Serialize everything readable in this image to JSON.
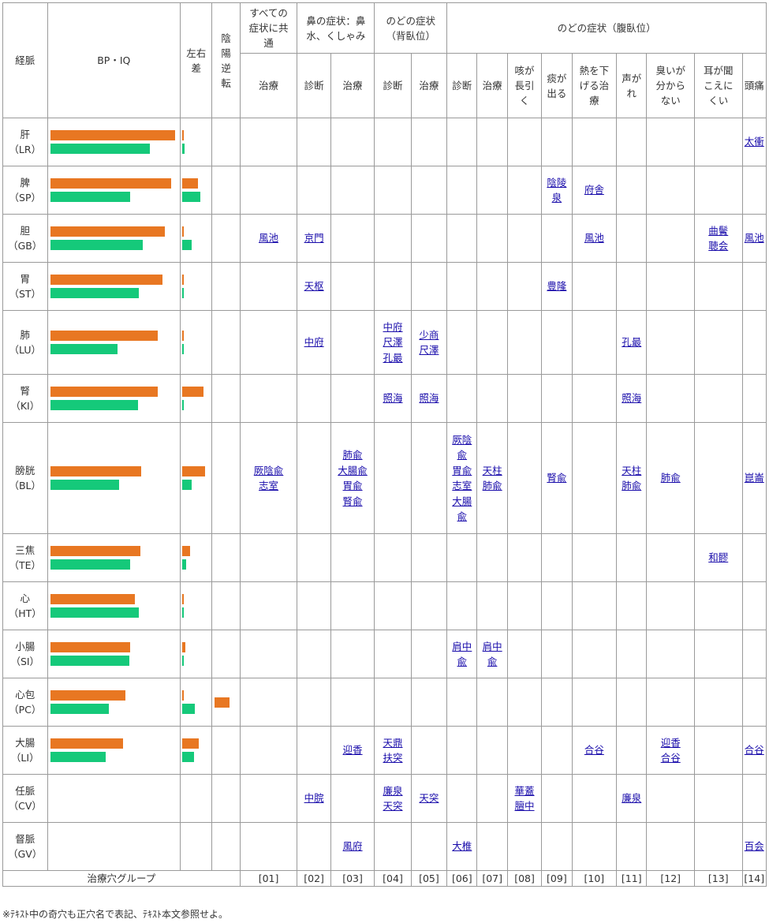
{
  "colors": {
    "bp": "#e87722",
    "iq": "#15c97a",
    "link": "#1a0dab",
    "border": "#9a9a9a"
  },
  "header": {
    "keimyaku": "経脈",
    "bpiq": "BP・IQ",
    "sayu": [
      "左右",
      "差"
    ],
    "inyo": [
      "陰",
      "陽",
      "逆",
      "転"
    ],
    "group_all": [
      "すべての",
      "症状に共",
      "通"
    ],
    "group_nose": [
      "鼻の症状：鼻",
      "水、くしゃみ"
    ],
    "group_throat_back": [
      "のどの症状",
      "（背臥位）"
    ],
    "group_throat_prone": "のどの症状（腹臥位）",
    "sub": {
      "c1": "治療",
      "c2": "診断",
      "c3": "治療",
      "c4": "診断",
      "c5": "治療",
      "c6": "診断",
      "c7": "治療",
      "c8": [
        "咳が",
        "長引",
        "く"
      ],
      "c9": [
        "痰が",
        "出る"
      ],
      "c10": [
        "熱を下",
        "げる治",
        "療"
      ],
      "c11": [
        "声が",
        "れ"
      ],
      "c12": [
        "臭いが",
        "分から",
        "ない"
      ],
      "c13": [
        "耳が聞",
        "こえに",
        "くい"
      ],
      "c14": "頭痛"
    }
  },
  "rows": [
    {
      "name": "肝",
      "code": "（LR）",
      "bp": 1.0,
      "iq": 0.8,
      "d1": 0.07,
      "d2": 0.1,
      "inv": 0,
      "cells": [
        [],
        [],
        [],
        [],
        [],
        [],
        [],
        [],
        [],
        [],
        [],
        [],
        [],
        [
          "太衝"
        ]
      ]
    },
    {
      "name": "脾",
      "code": "（SP）",
      "bp": 0.97,
      "iq": 0.64,
      "d1": 0.6,
      "d2": 0.68,
      "inv": 0,
      "cells": [
        [],
        [],
        [],
        [],
        [],
        [],
        [],
        [],
        [
          "陰陵",
          "泉"
        ],
        [
          "府舎"
        ],
        [],
        [],
        [],
        []
      ]
    },
    {
      "name": "胆",
      "code": "（GB）",
      "bp": 0.92,
      "iq": 0.74,
      "d1": 0.07,
      "d2": 0.36,
      "inv": 0,
      "cells": [
        [
          "風池"
        ],
        [
          "京門"
        ],
        [],
        [],
        [],
        [],
        [],
        [],
        [],
        [
          "風池"
        ],
        [],
        [],
        [
          "曲鬢",
          "聴会"
        ],
        [
          "風池"
        ]
      ]
    },
    {
      "name": "胃",
      "code": "（ST）",
      "bp": 0.9,
      "iq": 0.71,
      "d1": 0.07,
      "d2": 0.04,
      "inv": 0,
      "cells": [
        [],
        [
          "天枢"
        ],
        [],
        [],
        [],
        [],
        [],
        [],
        [
          "豊隆"
        ],
        [],
        [],
        [],
        [],
        []
      ]
    },
    {
      "name": "肺",
      "code": "（LU）",
      "bp": 0.86,
      "iq": 0.54,
      "d1": 0.07,
      "d2": 0.07,
      "inv": 0,
      "cells": [
        [],
        [
          "中府"
        ],
        [],
        [
          "中府",
          "尺澤",
          "孔最"
        ],
        [
          "少商",
          "尺澤"
        ],
        [],
        [],
        [],
        [],
        [],
        [
          "孔最"
        ],
        [],
        [],
        []
      ]
    },
    {
      "name": "腎",
      "code": "（KI）",
      "bp": 0.86,
      "iq": 0.7,
      "d1": 0.8,
      "d2": 0.04,
      "inv": 0,
      "cells": [
        [],
        [],
        [],
        [
          "照海"
        ],
        [
          "照海"
        ],
        [],
        [],
        [],
        [],
        [],
        [
          "照海"
        ],
        [],
        [],
        []
      ]
    },
    {
      "name": "膀胱",
      "code": "（BL）",
      "bp": 0.73,
      "iq": 0.55,
      "d1": 0.85,
      "d2": 0.34,
      "inv": 0,
      "cells": [
        [
          "厥陰兪",
          "志室"
        ],
        [],
        [
          "肺兪",
          "大腸兪",
          "胃兪",
          "腎兪"
        ],
        [],
        [],
        [
          "厥陰",
          "兪",
          "胃兪",
          "志室",
          "大腸",
          "兪"
        ],
        [
          "天柱",
          "肺兪"
        ],
        [],
        [
          "腎兪"
        ],
        [],
        [
          "天柱",
          "肺兪"
        ],
        [
          "肺兪"
        ],
        [],
        [
          "崑崙"
        ]
      ]
    },
    {
      "name": "三焦",
      "code": "（TE）",
      "bp": 0.72,
      "iq": 0.64,
      "d1": 0.3,
      "d2": 0.15,
      "inv": 0,
      "cells": [
        [],
        [],
        [],
        [],
        [],
        [],
        [],
        [],
        [],
        [],
        [],
        [],
        [
          "和髎"
        ],
        []
      ]
    },
    {
      "name": "心",
      "code": "（HT）",
      "bp": 0.68,
      "iq": 0.71,
      "d1": 0.07,
      "d2": 0.02,
      "inv": 0,
      "cells": [
        [],
        [],
        [],
        [],
        [],
        [],
        [],
        [],
        [],
        [],
        [],
        [],
        [],
        []
      ]
    },
    {
      "name": "小腸",
      "code": "（SI）",
      "bp": 0.64,
      "iq": 0.63,
      "d1": 0.12,
      "d2": 0.04,
      "inv": 0,
      "cells": [
        [],
        [],
        [],
        [],
        [],
        [
          "肩中",
          "兪"
        ],
        [
          "肩中",
          "兪"
        ],
        [],
        [],
        [],
        [],
        [],
        [],
        []
      ]
    },
    {
      "name": "心包",
      "code": "（PC）",
      "bp": 0.6,
      "iq": 0.47,
      "d1": 0.02,
      "d2": 0.46,
      "inv": 0.45,
      "cells": [
        [],
        [],
        [],
        [],
        [],
        [],
        [],
        [],
        [],
        [],
        [],
        [],
        [],
        []
      ]
    },
    {
      "name": "大腸",
      "code": "（LI）",
      "bp": 0.58,
      "iq": 0.44,
      "d1": 0.62,
      "d2": 0.44,
      "inv": 0,
      "cells": [
        [],
        [],
        [
          "迎香"
        ],
        [
          "天鼎",
          "扶突"
        ],
        [],
        [],
        [],
        [],
        [],
        [
          "合谷"
        ],
        [],
        [
          "迎香",
          "合谷"
        ],
        [],
        [
          "合谷"
        ]
      ]
    },
    {
      "name": "任脈",
      "code": "（CV）",
      "bp": 0,
      "iq": 0,
      "d1": 0,
      "d2": 0,
      "inv": 0,
      "cells": [
        [],
        [
          "中脘"
        ],
        [],
        [
          "廉泉",
          "天突"
        ],
        [
          "天突"
        ],
        [],
        [],
        [
          "華蓋",
          "膻中"
        ],
        [],
        [],
        [
          "廉泉"
        ],
        [],
        [],
        []
      ]
    },
    {
      "name": "督脈",
      "code": "（GV）",
      "bp": 0,
      "iq": 0,
      "d1": 0,
      "d2": 0,
      "inv": 0,
      "cells": [
        [],
        [],
        [
          "風府"
        ],
        [],
        [],
        [
          "大椎"
        ],
        [],
        [],
        [],
        [],
        [],
        [],
        [],
        [
          "百会"
        ]
      ]
    }
  ],
  "footer": {
    "label": "治療穴グループ",
    "groups": [
      "[01]",
      "[02]",
      "[03]",
      "[04]",
      "[05]",
      "[06]",
      "[07]",
      "[08]",
      "[09]",
      "[10]",
      "[11]",
      "[12]",
      "[13]",
      "[14]"
    ]
  },
  "note": "※ﾃｷｽﾄ中の奇穴も正穴名で表記、ﾃｷｽﾄ本文参照せよ。"
}
